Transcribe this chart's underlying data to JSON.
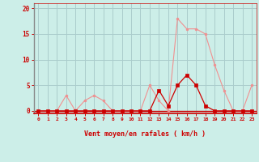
{
  "x": [
    0,
    1,
    2,
    3,
    4,
    5,
    6,
    7,
    8,
    9,
    10,
    11,
    12,
    13,
    14,
    15,
    16,
    17,
    18,
    19,
    20,
    21,
    22,
    23
  ],
  "rafales": [
    0,
    0,
    0,
    3,
    0,
    2,
    3,
    2,
    0,
    0,
    0,
    0,
    5,
    2,
    0,
    18,
    16,
    16,
    15,
    9,
    4,
    0,
    0,
    5
  ],
  "moyen": [
    0,
    0,
    0,
    0,
    0,
    0,
    0,
    0,
    0,
    0,
    0,
    0,
    0,
    4,
    1,
    5,
    7,
    5,
    1,
    0,
    0,
    0,
    0,
    0
  ],
  "bg_color": "#cceee8",
  "grid_color": "#aacccc",
  "line_color_rafales": "#f09090",
  "line_color_moyen": "#cc0000",
  "marker_color_rafales": "#f09090",
  "marker_color_moyen": "#cc0000",
  "xlabel": "Vent moyen/en rafales ( km/h )",
  "ylabel_ticks": [
    0,
    5,
    10,
    15,
    20
  ],
  "xlim": [
    -0.5,
    23.5
  ],
  "ylim": [
    -0.5,
    21
  ],
  "tick_labels": [
    "0",
    "1",
    "2",
    "3",
    "4",
    "5",
    "6",
    "7",
    "8",
    "9",
    "10",
    "11",
    "12",
    "13",
    "14",
    "15",
    "16",
    "17",
    "18",
    "19",
    "20",
    "21",
    "22",
    "23"
  ],
  "xlabel_color": "#cc0000",
  "tick_color": "#cc0000",
  "spine_color": "#cc0000",
  "left_spine_color": "#888888"
}
